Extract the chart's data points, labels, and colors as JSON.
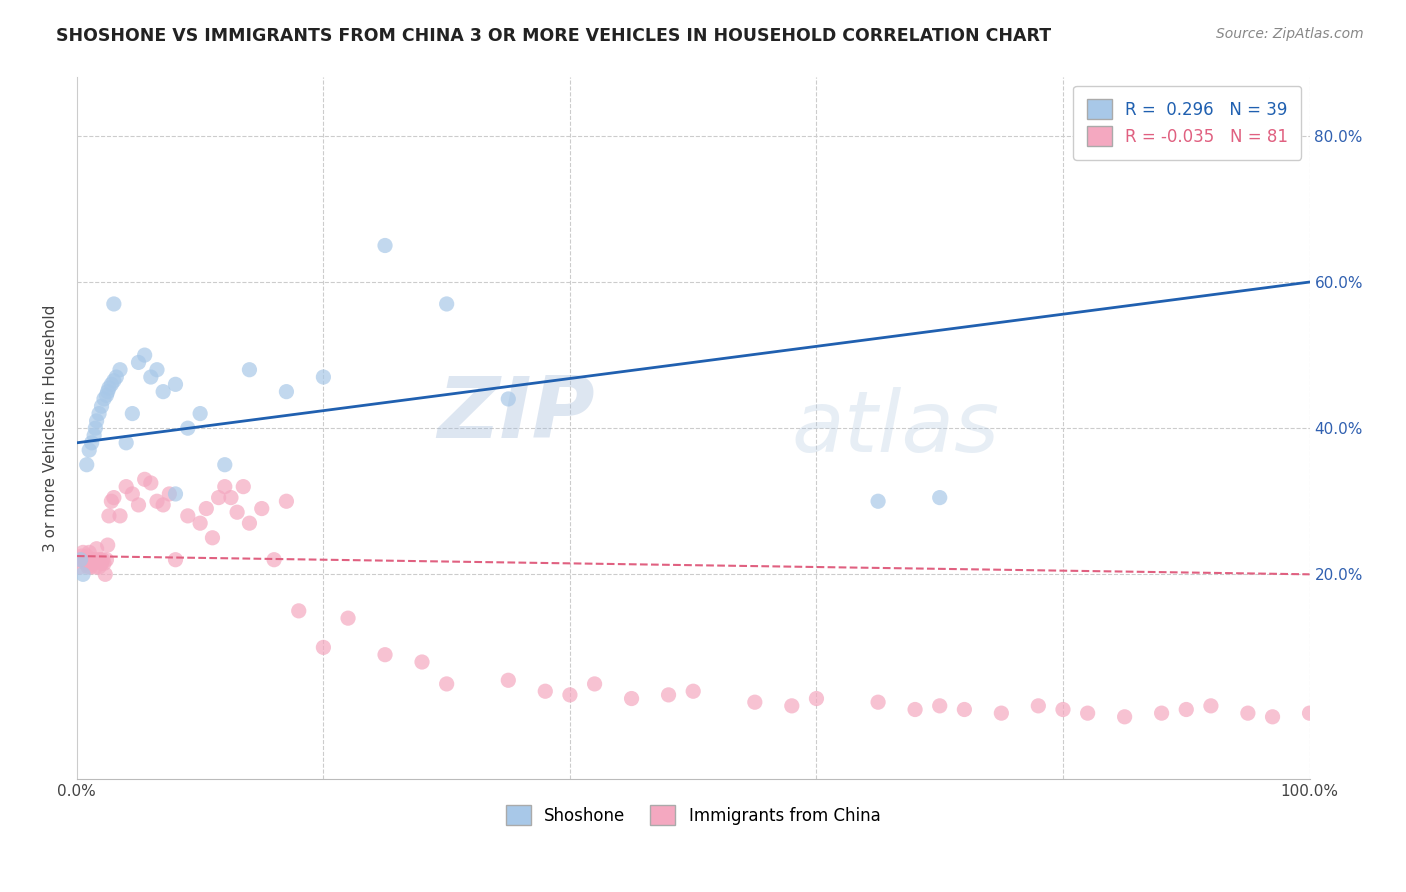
{
  "title": "SHOSHONE VS IMMIGRANTS FROM CHINA 3 OR MORE VEHICLES IN HOUSEHOLD CORRELATION CHART",
  "source": "Source: ZipAtlas.com",
  "ylabel": "3 or more Vehicles in Household",
  "yaxis_labels": [
    "20.0%",
    "40.0%",
    "60.0%",
    "80.0%"
  ],
  "legend_shoshone": "Shoshone",
  "legend_china": "Immigrants from China",
  "R_shoshone": 0.296,
  "N_shoshone": 39,
  "R_china": -0.035,
  "N_china": 81,
  "shoshone_color": "#a8c8e8",
  "china_color": "#f4a8c0",
  "shoshone_line_color": "#2060b0",
  "china_line_color": "#e06080",
  "watermark_zip": "ZIP",
  "watermark_atlas": "atlas",
  "shoshone_x": [
    0.3,
    0.5,
    0.8,
    1.0,
    1.2,
    1.4,
    1.5,
    1.6,
    1.8,
    2.0,
    2.2,
    2.4,
    2.5,
    2.6,
    2.8,
    3.0,
    3.2,
    3.5,
    4.0,
    4.5,
    5.0,
    5.5,
    6.0,
    6.5,
    7.0,
    8.0,
    9.0,
    10.0,
    12.0,
    14.0,
    17.0,
    20.0,
    25.0,
    30.0,
    35.0,
    65.0,
    70.0,
    3.0,
    8.0
  ],
  "shoshone_y": [
    22.0,
    20.0,
    35.0,
    37.0,
    38.0,
    39.0,
    40.0,
    41.0,
    42.0,
    43.0,
    44.0,
    44.5,
    45.0,
    45.5,
    46.0,
    46.5,
    47.0,
    48.0,
    38.0,
    42.0,
    49.0,
    50.0,
    47.0,
    48.0,
    45.0,
    46.0,
    40.0,
    42.0,
    35.0,
    48.0,
    45.0,
    47.0,
    65.0,
    57.0,
    44.0,
    30.0,
    30.5,
    57.0,
    31.0
  ],
  "china_x": [
    0.2,
    0.3,
    0.4,
    0.5,
    0.6,
    0.7,
    0.8,
    0.9,
    1.0,
    1.1,
    1.2,
    1.3,
    1.4,
    1.5,
    1.6,
    1.7,
    1.8,
    1.9,
    2.0,
    2.1,
    2.2,
    2.3,
    2.4,
    2.5,
    2.6,
    2.8,
    3.0,
    3.5,
    4.0,
    4.5,
    5.0,
    5.5,
    6.0,
    6.5,
    7.0,
    7.5,
    8.0,
    9.0,
    10.0,
    10.5,
    11.0,
    11.5,
    12.0,
    12.5,
    13.0,
    13.5,
    14.0,
    15.0,
    16.0,
    17.0,
    18.0,
    20.0,
    22.0,
    25.0,
    28.0,
    30.0,
    35.0,
    38.0,
    40.0,
    42.0,
    45.0,
    48.0,
    50.0,
    55.0,
    58.0,
    60.0,
    65.0,
    68.0,
    70.0,
    72.0,
    75.0,
    78.0,
    80.0,
    82.0,
    85.0,
    88.0,
    90.0,
    92.0,
    95.0,
    97.0,
    100.0
  ],
  "china_y": [
    22.0,
    21.0,
    22.5,
    23.0,
    22.0,
    21.5,
    22.5,
    21.0,
    23.0,
    21.0,
    22.0,
    21.5,
    22.0,
    21.0,
    23.5,
    22.0,
    21.0,
    22.0,
    21.5,
    22.0,
    21.5,
    20.0,
    22.0,
    24.0,
    28.0,
    30.0,
    30.5,
    28.0,
    32.0,
    31.0,
    29.5,
    33.0,
    32.5,
    30.0,
    29.5,
    31.0,
    22.0,
    28.0,
    27.0,
    29.0,
    25.0,
    30.5,
    32.0,
    30.5,
    28.5,
    32.0,
    27.0,
    29.0,
    22.0,
    30.0,
    15.0,
    10.0,
    14.0,
    9.0,
    8.0,
    5.0,
    5.5,
    4.0,
    3.5,
    5.0,
    3.0,
    3.5,
    4.0,
    2.5,
    2.0,
    3.0,
    2.5,
    1.5,
    2.0,
    1.5,
    1.0,
    2.0,
    1.5,
    1.0,
    0.5,
    1.0,
    1.5,
    2.0,
    1.0,
    0.5,
    1.0
  ]
}
